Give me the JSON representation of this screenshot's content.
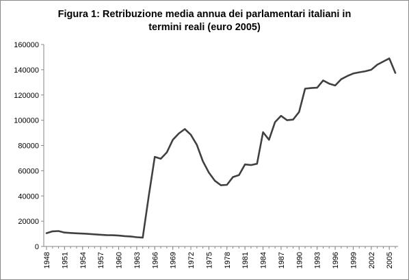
{
  "chart_data": {
    "type": "line",
    "title_lines": [
      "Figura 1: Retribuzione media annua dei parlamentari italiani in",
      "termini reali (euro 2005)"
    ],
    "xlabel": "",
    "ylabel": "",
    "xlim": [
      1948,
      2006
    ],
    "ylim": [
      0,
      160000
    ],
    "y_ticks": [
      0,
      20000,
      40000,
      60000,
      80000,
      100000,
      120000,
      140000,
      160000
    ],
    "y_tick_labels": [
      "0",
      "20000",
      "40000",
      "60000",
      "80000",
      "100000",
      "120000",
      "140000",
      "160000"
    ],
    "x_ticks": [
      1948,
      1951,
      1954,
      1957,
      1960,
      1963,
      1966,
      1969,
      1972,
      1975,
      1978,
      1981,
      1984,
      1987,
      1990,
      1993,
      1996,
      1999,
      2002,
      2005
    ],
    "x_tick_labels": [
      "1948",
      "1951",
      "1954",
      "1957",
      "1960",
      "1963",
      "1966",
      "1969",
      "1972",
      "1975",
      "1978",
      "1981",
      "1984",
      "1987",
      "1990",
      "1993",
      "1996",
      "1999",
      "2002",
      "2005"
    ],
    "grid": false,
    "legend": "none",
    "line_color": "#404040",
    "series": [
      {
        "x": [
          1948,
          1949,
          1950,
          1951,
          1952,
          1953,
          1954,
          1955,
          1956,
          1957,
          1958,
          1959,
          1960,
          1961,
          1962,
          1963,
          1964,
          1965,
          1966,
          1967,
          1968,
          1969,
          1970,
          1971,
          1972,
          1973,
          1974,
          1975,
          1976,
          1977,
          1978,
          1979,
          1980,
          1981,
          1982,
          1983,
          1984,
          1985,
          1986,
          1987,
          1988,
          1989,
          1990,
          1991,
          1992,
          1993,
          1994,
          1995,
          1996,
          1997,
          1998,
          1999,
          2000,
          2001,
          2002,
          2003,
          2004,
          2005,
          2006
        ],
        "values": [
          10500,
          12000,
          12200,
          11000,
          10700,
          10400,
          10200,
          9900,
          9600,
          9300,
          9000,
          8900,
          8600,
          8200,
          7900,
          7300,
          7000,
          40000,
          71000,
          69500,
          74500,
          84500,
          89500,
          93000,
          88500,
          80500,
          67500,
          58500,
          52000,
          48500,
          48800,
          55000,
          56500,
          65000,
          64500,
          65500,
          90500,
          84500,
          98500,
          103500,
          100000,
          100500,
          106500,
          125000,
          125500,
          125800,
          131500,
          129000,
          127500,
          132500,
          135000,
          137000,
          138000,
          138800,
          140000,
          144000,
          146500,
          149000,
          137500
        ]
      }
    ]
  }
}
